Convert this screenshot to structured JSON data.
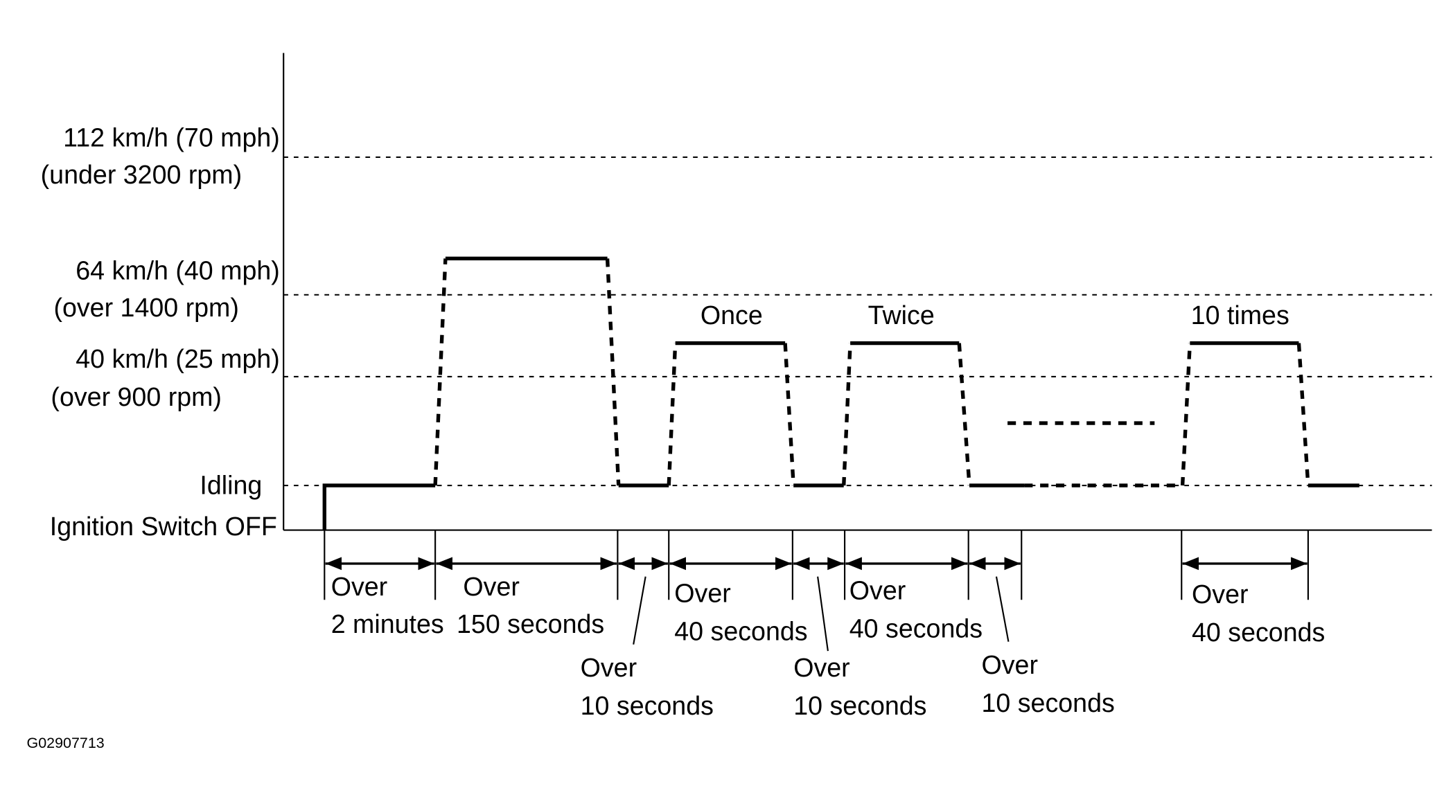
{
  "levels": [
    {
      "lines": [
        "112 km/h (70 mph)",
        "(under 3200 rpm)"
      ]
    },
    {
      "lines": [
        "64 km/h (40 mph)",
        "(over 1400 rpm)"
      ]
    },
    {
      "lines": [
        "40 km/h (25 mph)",
        "(over 900 rpm)"
      ]
    },
    {
      "lines": [
        "Idling"
      ]
    },
    {
      "lines": [
        "Ignition Switch OFF"
      ]
    }
  ],
  "annotations": [
    "Once",
    "Twice",
    "10 times"
  ],
  "intervals": [
    [
      "Over",
      "2 minutes"
    ],
    [
      "Over",
      "150 seconds"
    ],
    [
      "Over",
      "10 seconds"
    ],
    [
      "Over",
      "40 seconds"
    ],
    [
      "Over",
      "10 seconds"
    ],
    [
      "Over",
      "40 seconds"
    ],
    [
      "Over",
      "10 seconds"
    ],
    [
      "Over",
      "40 seconds"
    ]
  ],
  "figure_id": "G02907713"
}
